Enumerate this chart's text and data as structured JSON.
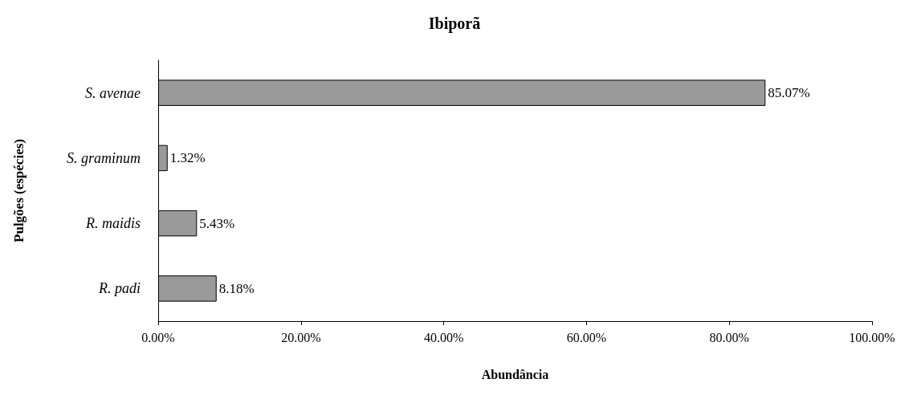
{
  "chart_data": {
    "type": "bar",
    "title": "Ibiporã",
    "xlabel": "Abundância",
    "ylabel": "Pulgões (espécies)",
    "orientation": "horizontal",
    "categories": [
      "S. avenae",
      "S. graminum",
      "R. maidis",
      "R. padi"
    ],
    "values": [
      85.07,
      1.32,
      5.43,
      8.18
    ],
    "value_labels": [
      "85.07%",
      "1.32%",
      "5.43%",
      "8.18%"
    ],
    "color": "#9a9a9a",
    "xlim": [
      0,
      100
    ],
    "xticks": [
      {
        "value": 0,
        "label": "0.00%"
      },
      {
        "value": 20,
        "label": "20.00%"
      },
      {
        "value": 40,
        "label": "40.00%"
      },
      {
        "value": 60,
        "label": "60.00%"
      },
      {
        "value": 80,
        "label": "80.00%"
      },
      {
        "value": 100,
        "label": "100.00%"
      }
    ],
    "grid": false
  }
}
